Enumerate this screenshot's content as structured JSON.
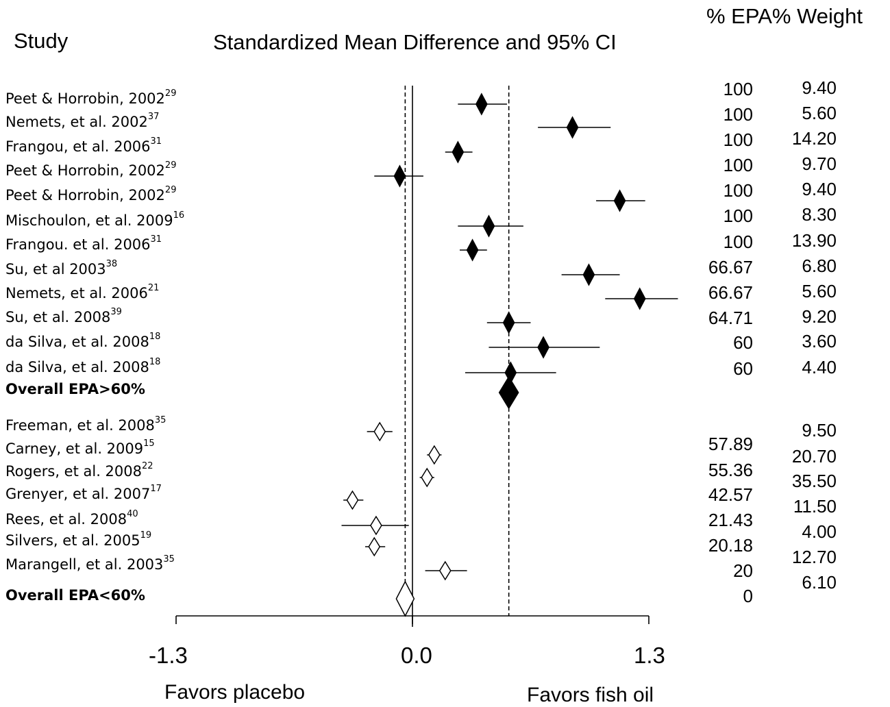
{
  "header": {
    "study": "Study",
    "title": "Standardized Mean Difference and 95% CI",
    "col_epa": "% EPA",
    "col_weight": "% Weight"
  },
  "footer": {
    "left": "Favors placebo",
    "right": "Favors fish oil"
  },
  "chart_data": {
    "type": "forest",
    "x_range": [
      -1.3,
      1.3
    ],
    "x_ticks": [
      "-1.3",
      "0.0",
      "1.3"
    ],
    "reference_lines": {
      "solid": 0.0,
      "dashed": [
        -0.04,
        0.53
      ]
    },
    "groups": [
      {
        "label": "Overall EPA>60%",
        "filled": true,
        "studies": [
          {
            "name": "Peet & Horrobin, 2002",
            "ref": "29",
            "est": 0.38,
            "lo": 0.25,
            "hi": 0.52,
            "epa": "100",
            "weight": "9.40"
          },
          {
            "name": "Nemets, et al. 2002",
            "ref": "37",
            "est": 0.88,
            "lo": 0.69,
            "hi": 1.09,
            "epa": "100",
            "weight": "5.60"
          },
          {
            "name": "Frangou, et al. 2006",
            "ref": "31",
            "est": 0.25,
            "lo": 0.18,
            "hi": 0.33,
            "epa": "100",
            "weight": "14.20"
          },
          {
            "name": "Peet & Horrobin, 2002",
            "ref": "29",
            "est": -0.07,
            "lo": -0.21,
            "hi": 0.06,
            "epa": "100",
            "weight": "9.70"
          },
          {
            "name": "Peet & Horrobin, 2002",
            "ref": "29",
            "est": 1.14,
            "lo": 1.01,
            "hi": 1.28,
            "epa": "100",
            "weight": "9.40"
          },
          {
            "name": "Mischoulon, et al. 2009",
            "ref": "16",
            "est": 0.42,
            "lo": 0.25,
            "hi": 0.61,
            "epa": "100",
            "weight": "8.30"
          },
          {
            "name": "Frangou. et al. 2006",
            "ref": "31",
            "est": 0.33,
            "lo": 0.26,
            "hi": 0.41,
            "epa": "100",
            "weight": "13.90"
          },
          {
            "name": "Su, et al 2003",
            "ref": "38",
            "est": 0.97,
            "lo": 0.82,
            "hi": 1.14,
            "epa": "66.67",
            "weight": "6.80"
          },
          {
            "name": "Nemets, et al. 2006",
            "ref": "21",
            "est": 1.25,
            "lo": 1.06,
            "hi": 1.46,
            "epa": "66.67",
            "weight": "5.60"
          },
          {
            "name": "Su, et al. 2008",
            "ref": "39",
            "est": 0.53,
            "lo": 0.41,
            "hi": 0.65,
            "epa": "64.71",
            "weight": "9.20"
          },
          {
            "name": "da Silva, et al. 2008",
            "ref": "18",
            "est": 0.72,
            "lo": 0.42,
            "hi": 1.03,
            "epa": "60",
            "weight": "3.60"
          },
          {
            "name": "da Silva, et al. 2008",
            "ref": "18",
            "est": 0.54,
            "lo": 0.29,
            "hi": 0.79,
            "epa": "60",
            "weight": "4.40"
          }
        ],
        "overall_est": 0.53
      },
      {
        "label": "Overall EPA<60%",
        "filled": false,
        "studies": [
          {
            "name": "Freeman, et al. 2008",
            "ref": "35",
            "est": -0.18,
            "lo": -0.25,
            "hi": -0.11,
            "epa": "57.89",
            "weight": "9.50"
          },
          {
            "name": "Carney, et al. 2009",
            "ref": "15",
            "est": 0.12,
            "lo": 0.08,
            "hi": 0.16,
            "epa": "55.36",
            "weight": "20.70"
          },
          {
            "name": "Rogers, et al. 2008",
            "ref": "22",
            "est": 0.08,
            "lo": 0.04,
            "hi": 0.12,
            "epa": "42.57",
            "weight": "35.50"
          },
          {
            "name": "Grenyer, et al. 2007",
            "ref": "17",
            "est": -0.33,
            "lo": -0.38,
            "hi": -0.27,
            "epa": "21.43",
            "weight": "11.50"
          },
          {
            "name": "Rees, et al. 2008",
            "ref": "40",
            "est": -0.2,
            "lo": -0.39,
            "hi": -0.02,
            "epa": "20.18",
            "weight": "4.00"
          },
          {
            "name": "Silvers, et al. 2005",
            "ref": "19",
            "est": -0.21,
            "lo": -0.26,
            "hi": -0.15,
            "epa": "20",
            "weight": "12.70"
          },
          {
            "name": "Marangell, et al. 2003",
            "ref": "35",
            "est": 0.18,
            "lo": 0.07,
            "hi": 0.3,
            "epa": "0",
            "weight": "6.10"
          }
        ],
        "overall_est": -0.04
      }
    ]
  }
}
